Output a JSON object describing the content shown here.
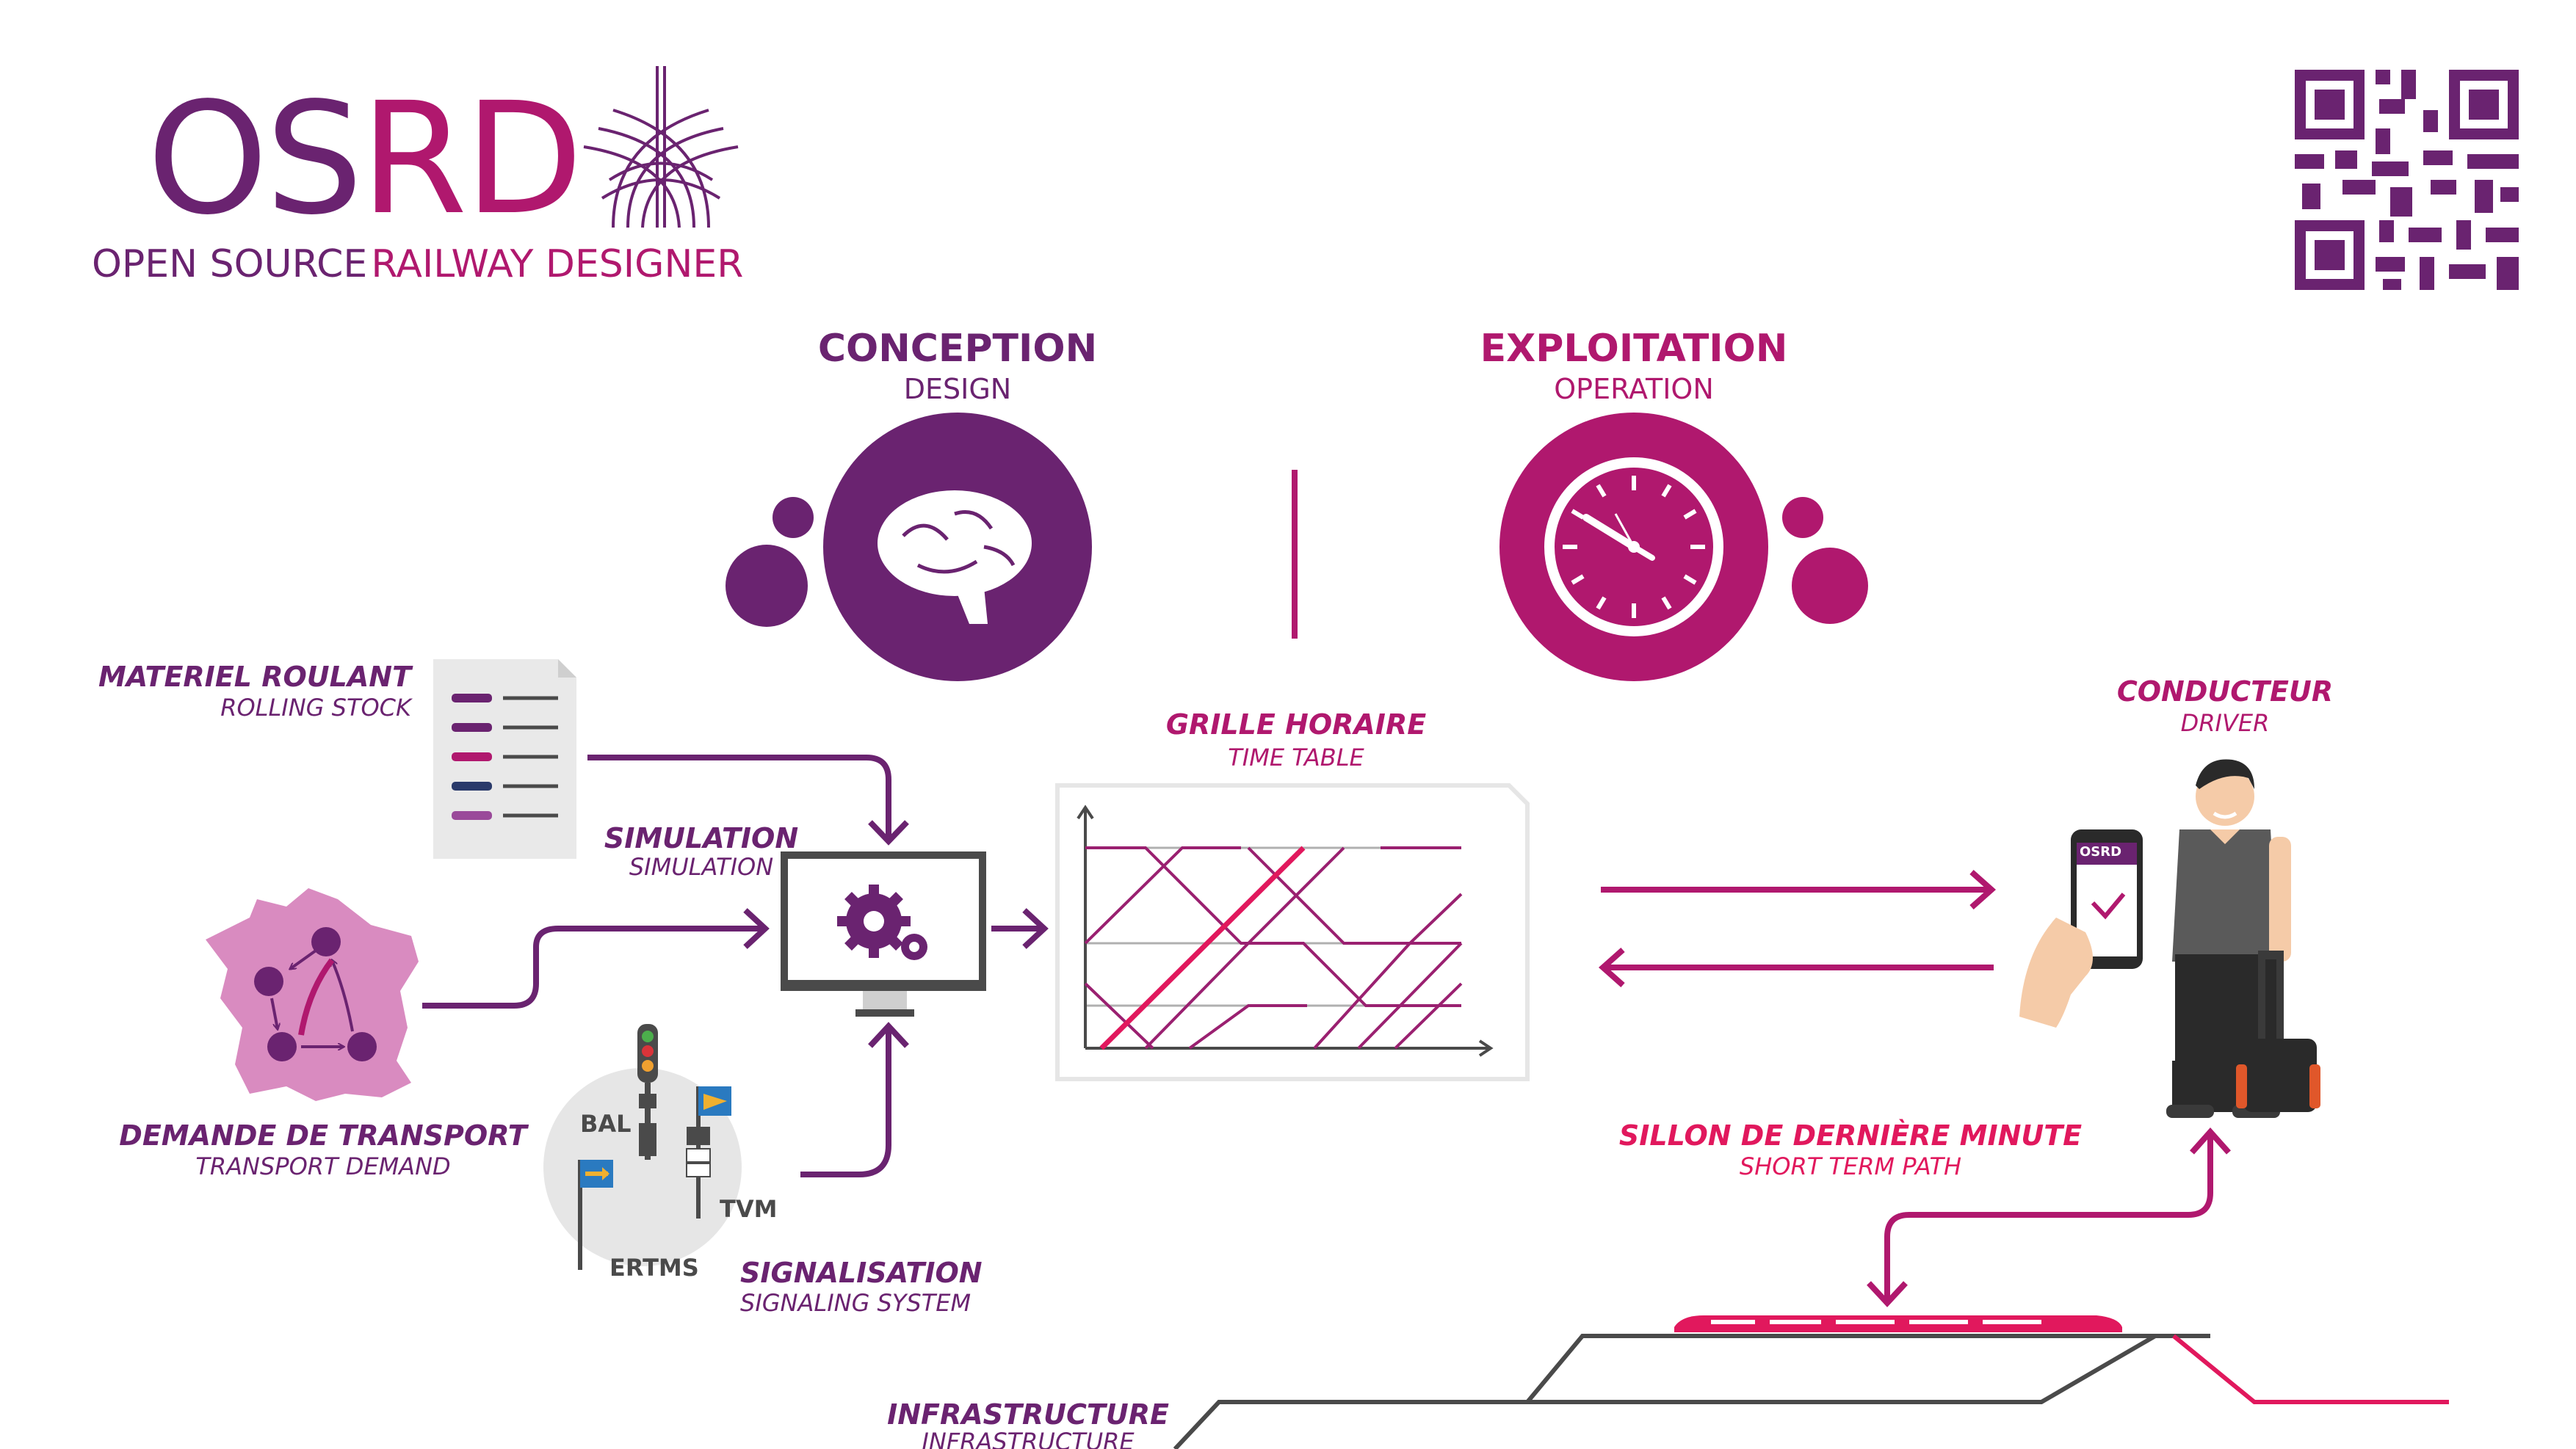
{
  "logo": {
    "os": "OS",
    "rd": "RD",
    "tagline_part1": "OPEN SOURCE",
    "tagline_part2": "RAILWAY DESIGNER"
  },
  "phases": {
    "conception": {
      "title": "CONCEPTION",
      "subtitle": "DESIGN",
      "icon": "brain-icon"
    },
    "exploitation": {
      "title": "EXPLOITATION",
      "subtitle": "OPERATION",
      "icon": "clock-icon"
    }
  },
  "inputs": {
    "rolling_stock": {
      "title": "MATERIEL ROULANT",
      "subtitle": "ROLLING STOCK"
    },
    "transport_demand": {
      "title": "DEMANDE DE TRANSPORT",
      "subtitle": "TRANSPORT DEMAND"
    },
    "signaling": {
      "title": "SIGNALISATION",
      "subtitle": "SIGNALING SYSTEM",
      "systems": [
        "BAL",
        "TVM",
        "ERTMS"
      ]
    }
  },
  "simulation": {
    "title": "SIMULATION",
    "subtitle": "SIMULATION"
  },
  "timetable": {
    "title": "GRILLE HORAIRE",
    "subtitle": "TIME TABLE"
  },
  "driver": {
    "title": "CONDUCTEUR",
    "subtitle": "DRIVER",
    "phone_app": "OSRD"
  },
  "short_term_path": {
    "title": "SILLON DE DERNIÈRE MINUTE",
    "subtitle": "SHORT TERM PATH"
  },
  "infrastructure": {
    "title": "INFRASTRUCTURE",
    "subtitle": "INFRASTRUCTURE"
  },
  "colors": {
    "purple": "#6a2370",
    "magenta": "#b0186e",
    "pink": "#e1185d",
    "gray": "#4a4a4a",
    "light_pink": "#d98bc0"
  }
}
